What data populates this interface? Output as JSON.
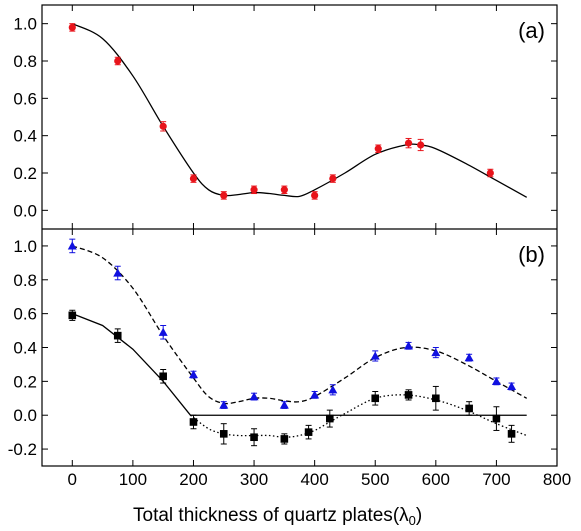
{
  "chart_data": [
    {
      "type": "scatter",
      "panel_label": "(a)",
      "xlim": [
        -50,
        800
      ],
      "ylim": [
        -0.1,
        1.1
      ],
      "yticks": [
        "0.0",
        "0.2",
        "0.4",
        "0.6",
        "0.8",
        "1.0"
      ],
      "ytick_values": [
        0,
        0.2,
        0.4,
        0.6,
        0.8,
        1.0
      ],
      "series": [
        {
          "marker": "circle",
          "color": "#e8141b",
          "points": [
            {
              "x": 0,
              "y": 0.98,
              "err": 0.02
            },
            {
              "x": 75,
              "y": 0.8,
              "err": 0.02
            },
            {
              "x": 150,
              "y": 0.45,
              "err": 0.025
            },
            {
              "x": 200,
              "y": 0.17,
              "err": 0.02
            },
            {
              "x": 250,
              "y": 0.08,
              "err": 0.02
            },
            {
              "x": 300,
              "y": 0.11,
              "err": 0.02
            },
            {
              "x": 350,
              "y": 0.11,
              "err": 0.02
            },
            {
              "x": 400,
              "y": 0.08,
              "err": 0.02
            },
            {
              "x": 430,
              "y": 0.17,
              "err": 0.02
            },
            {
              "x": 505,
              "y": 0.33,
              "err": 0.02
            },
            {
              "x": 555,
              "y": 0.36,
              "err": 0.025
            },
            {
              "x": 575,
              "y": 0.35,
              "err": 0.03
            },
            {
              "x": 690,
              "y": 0.2,
              "err": 0.02
            }
          ]
        }
      ],
      "fit_curves": [
        {
          "style": "solid",
          "color": "#000000",
          "x": [
            0,
            50,
            100,
            150,
            200,
            225,
            250,
            275,
            300,
            325,
            350,
            375,
            400,
            450,
            500,
            550,
            575,
            600,
            650,
            700,
            750
          ],
          "y": [
            1.0,
            0.92,
            0.72,
            0.45,
            0.2,
            0.11,
            0.08,
            0.085,
            0.095,
            0.09,
            0.08,
            0.075,
            0.11,
            0.2,
            0.3,
            0.35,
            0.35,
            0.33,
            0.25,
            0.16,
            0.07
          ]
        }
      ]
    },
    {
      "type": "scatter",
      "panel_label": "(b)",
      "xlim": [
        -50,
        800
      ],
      "ylim": [
        -0.3,
        1.1
      ],
      "yticks": [
        "-0.2",
        "0.0",
        "0.2",
        "0.4",
        "0.6",
        "0.8",
        "1.0"
      ],
      "ytick_values": [
        -0.2,
        0,
        0.2,
        0.4,
        0.6,
        0.8,
        1.0
      ],
      "xticks": [
        "0",
        "100",
        "200",
        "300",
        "400",
        "500",
        "600",
        "700",
        "800"
      ],
      "xtick_values": [
        0,
        100,
        200,
        300,
        400,
        500,
        600,
        700,
        800
      ],
      "xlabel_main": "Total thickness of quartz plates",
      "xlabel_paren_open": "(",
      "xlabel_lambda": "λ",
      "xlabel_sub": "0",
      "xlabel_paren_close": ")",
      "series": [
        {
          "marker": "triangle",
          "color": "#1010e0",
          "points": [
            {
              "x": 0,
              "y": 1.0,
              "err": 0.04
            },
            {
              "x": 75,
              "y": 0.84,
              "err": 0.04
            },
            {
              "x": 150,
              "y": 0.49,
              "err": 0.04
            },
            {
              "x": 200,
              "y": 0.24,
              "err": 0.02
            },
            {
              "x": 250,
              "y": 0.06,
              "err": 0.02
            },
            {
              "x": 300,
              "y": 0.11,
              "err": 0.02
            },
            {
              "x": 350,
              "y": 0.06,
              "err": 0.02
            },
            {
              "x": 400,
              "y": 0.12,
              "err": 0.02
            },
            {
              "x": 430,
              "y": 0.15,
              "err": 0.03
            },
            {
              "x": 500,
              "y": 0.35,
              "err": 0.03
            },
            {
              "x": 555,
              "y": 0.41,
              "err": 0.02
            },
            {
              "x": 600,
              "y": 0.37,
              "err": 0.03
            },
            {
              "x": 655,
              "y": 0.34,
              "err": 0.02
            },
            {
              "x": 700,
              "y": 0.2,
              "err": 0.02
            },
            {
              "x": 725,
              "y": 0.17,
              "err": 0.02
            }
          ]
        },
        {
          "marker": "square",
          "color": "#000000",
          "points": [
            {
              "x": 0,
              "y": 0.59,
              "err": 0.03
            },
            {
              "x": 75,
              "y": 0.47,
              "err": 0.04
            },
            {
              "x": 150,
              "y": 0.23,
              "err": 0.04
            },
            {
              "x": 200,
              "y": -0.04,
              "err": 0.04
            },
            {
              "x": 250,
              "y": -0.11,
              "err": 0.06
            },
            {
              "x": 300,
              "y": -0.13,
              "err": 0.05
            },
            {
              "x": 350,
              "y": -0.14,
              "err": 0.03
            },
            {
              "x": 390,
              "y": -0.1,
              "err": 0.04
            },
            {
              "x": 425,
              "y": -0.02,
              "err": 0.05
            },
            {
              "x": 500,
              "y": 0.1,
              "err": 0.04
            },
            {
              "x": 555,
              "y": 0.12,
              "err": 0.03
            },
            {
              "x": 600,
              "y": 0.1,
              "err": 0.07
            },
            {
              "x": 655,
              "y": 0.04,
              "err": 0.04
            },
            {
              "x": 700,
              "y": -0.02,
              "err": 0.07
            },
            {
              "x": 725,
              "y": -0.11,
              "err": 0.05
            }
          ]
        }
      ],
      "fit_curves": [
        {
          "style": "dashed",
          "color": "#000000",
          "x": [
            0,
            50,
            100,
            150,
            200,
            225,
            250,
            275,
            300,
            325,
            350,
            375,
            400,
            450,
            500,
            550,
            600,
            650,
            700,
            750
          ],
          "y": [
            1.0,
            0.93,
            0.75,
            0.47,
            0.22,
            0.11,
            0.07,
            0.08,
            0.1,
            0.1,
            0.085,
            0.08,
            0.11,
            0.22,
            0.34,
            0.4,
            0.38,
            0.3,
            0.2,
            0.1
          ]
        },
        {
          "style": "solid",
          "color": "#000000",
          "x": [
            0,
            50,
            100,
            150,
            195,
            750
          ],
          "y": [
            0.6,
            0.53,
            0.39,
            0.2,
            0.0,
            0.0
          ]
        },
        {
          "style": "dotted",
          "color": "#000000",
          "x": [
            195,
            225,
            250,
            275,
            300,
            325,
            350,
            375,
            400,
            425,
            450,
            500,
            550,
            600,
            650,
            700,
            750
          ],
          "y": [
            0.0,
            -0.08,
            -0.11,
            -0.12,
            -0.12,
            -0.12,
            -0.13,
            -0.12,
            -0.09,
            -0.04,
            0.01,
            0.1,
            0.12,
            0.09,
            0.03,
            -0.05,
            -0.12
          ]
        }
      ]
    }
  ]
}
